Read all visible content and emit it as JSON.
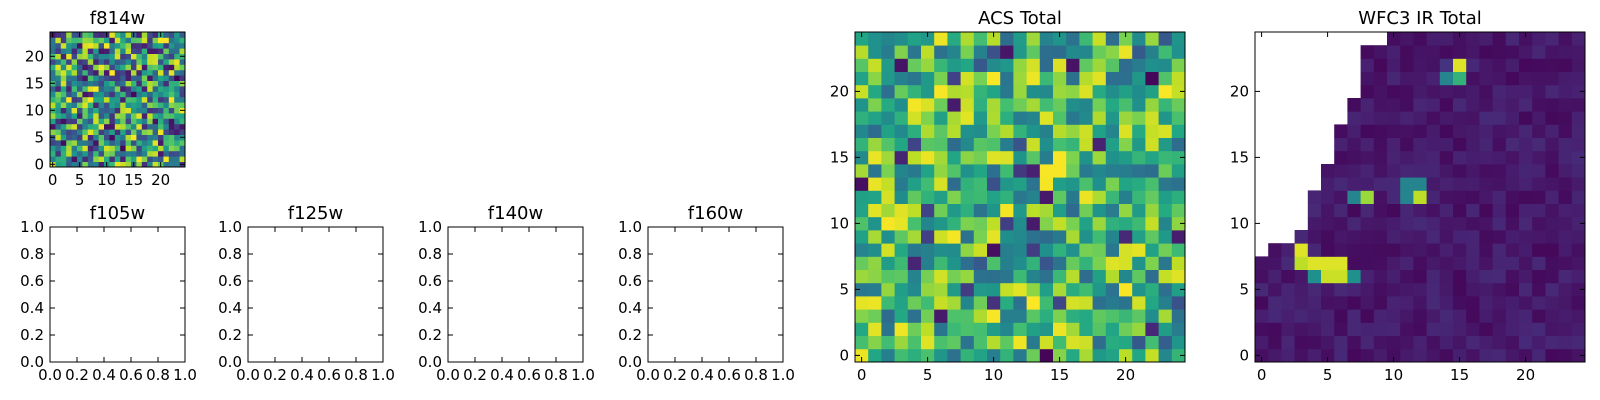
{
  "chart_data": [
    {
      "id": "f814w",
      "type": "heatmap",
      "title": "f814w",
      "grid_size": 25,
      "colormap": "viridis",
      "x_ticks": [
        "0",
        "5",
        "10",
        "15",
        "20"
      ],
      "y_ticks": [
        "0",
        "5",
        "10",
        "15",
        "20"
      ],
      "xlim": [
        -0.5,
        24.5
      ],
      "ylim": [
        -0.5,
        24.5
      ],
      "value_range": [
        0.05,
        1.0
      ],
      "pattern": "random"
    },
    {
      "id": "f105w",
      "type": "empty",
      "title": "f105w",
      "x_ticks": [
        "0.0",
        "0.2",
        "0.4",
        "0.6",
        "0.8",
        "1.0"
      ],
      "y_ticks": [
        "0.0",
        "0.2",
        "0.4",
        "0.6",
        "0.8",
        "1.0"
      ],
      "xlim": [
        0,
        1
      ],
      "ylim": [
        0,
        1
      ]
    },
    {
      "id": "f125w",
      "type": "empty",
      "title": "f125w",
      "x_ticks": [
        "0.0",
        "0.2",
        "0.4",
        "0.6",
        "0.8",
        "1.0"
      ],
      "y_ticks": [
        "0.0",
        "0.2",
        "0.4",
        "0.6",
        "0.8",
        "1.0"
      ],
      "xlim": [
        0,
        1
      ],
      "ylim": [
        0,
        1
      ]
    },
    {
      "id": "f140w",
      "type": "empty",
      "title": "f140w",
      "x_ticks": [
        "0.0",
        "0.2",
        "0.4",
        "0.6",
        "0.8",
        "1.0"
      ],
      "y_ticks": [
        "0.0",
        "0.2",
        "0.4",
        "0.6",
        "0.8",
        "1.0"
      ],
      "xlim": [
        0,
        1
      ],
      "ylim": [
        0,
        1
      ]
    },
    {
      "id": "f160w",
      "type": "empty",
      "title": "f160w",
      "x_ticks": [
        "0.0",
        "0.2",
        "0.4",
        "0.6",
        "0.8",
        "1.0"
      ],
      "y_ticks": [
        "0.0",
        "0.2",
        "0.4",
        "0.6",
        "0.8",
        "1.0"
      ],
      "xlim": [
        0,
        1
      ],
      "ylim": [
        0,
        1
      ]
    },
    {
      "id": "acs_total",
      "type": "heatmap",
      "title": "ACS Total",
      "grid_size": 25,
      "colormap": "viridis",
      "x_ticks": [
        "0",
        "5",
        "10",
        "15",
        "20"
      ],
      "y_ticks": [
        "0",
        "5",
        "10",
        "15",
        "20"
      ],
      "xlim": [
        -0.5,
        24.5
      ],
      "ylim": [
        -0.5,
        24.5
      ],
      "value_range": [
        0.35,
        1.0
      ],
      "pattern": "random"
    },
    {
      "id": "wfc3_ir_total",
      "type": "heatmap",
      "title": "WFC3 IR Total",
      "grid_size": 25,
      "colormap": "viridis",
      "x_ticks": [
        "0",
        "5",
        "10",
        "15",
        "20"
      ],
      "y_ticks": [
        "0",
        "5",
        "10",
        "15",
        "20"
      ],
      "xlim": [
        -0.5,
        24.5
      ],
      "ylim": [
        -0.5,
        24.5
      ],
      "value_range": [
        0.0,
        0.12
      ],
      "pattern": "masked-diagonal",
      "mask_boundary": [
        {
          "row": 24,
          "min_col": 10
        },
        {
          "row": 23,
          "min_col": 8
        },
        {
          "row": 22,
          "min_col": 8
        },
        {
          "row": 21,
          "min_col": 8
        },
        {
          "row": 20,
          "min_col": 8
        },
        {
          "row": 19,
          "min_col": 7
        },
        {
          "row": 18,
          "min_col": 7
        },
        {
          "row": 17,
          "min_col": 6
        },
        {
          "row": 16,
          "min_col": 6
        },
        {
          "row": 15,
          "min_col": 6
        },
        {
          "row": 14,
          "min_col": 5
        },
        {
          "row": 13,
          "min_col": 5
        },
        {
          "row": 12,
          "min_col": 4
        },
        {
          "row": 11,
          "min_col": 4
        },
        {
          "row": 10,
          "min_col": 4
        },
        {
          "row": 9,
          "min_col": 3
        },
        {
          "row": 8,
          "min_col": 1
        },
        {
          "row": 7,
          "min_col": 0
        }
      ],
      "hot_spots": [
        {
          "col": 3,
          "row": 8,
          "value": 0.95
        },
        {
          "col": 4,
          "row": 7,
          "value": 0.95
        },
        {
          "col": 5,
          "row": 7,
          "value": 0.95
        },
        {
          "col": 6,
          "row": 7,
          "value": 0.95
        },
        {
          "col": 3,
          "row": 7,
          "value": 0.9
        },
        {
          "col": 5,
          "row": 6,
          "value": 0.92
        },
        {
          "col": 6,
          "row": 6,
          "value": 0.92
        },
        {
          "col": 4,
          "row": 6,
          "value": 0.5
        },
        {
          "col": 7,
          "row": 6,
          "value": 0.5
        },
        {
          "col": 7,
          "row": 12,
          "value": 0.45
        },
        {
          "col": 8,
          "row": 12,
          "value": 0.85
        },
        {
          "col": 11,
          "row": 13,
          "value": 0.45
        },
        {
          "col": 12,
          "row": 13,
          "value": 0.45
        },
        {
          "col": 11,
          "row": 12,
          "value": 0.45
        },
        {
          "col": 12,
          "row": 12,
          "value": 0.9
        },
        {
          "col": 14,
          "row": 21,
          "value": 0.45
        },
        {
          "col": 15,
          "row": 21,
          "value": 0.65
        },
        {
          "col": 15,
          "row": 22,
          "value": 0.95
        },
        {
          "col": 14,
          "row": 22,
          "value": 0.15
        }
      ]
    }
  ]
}
